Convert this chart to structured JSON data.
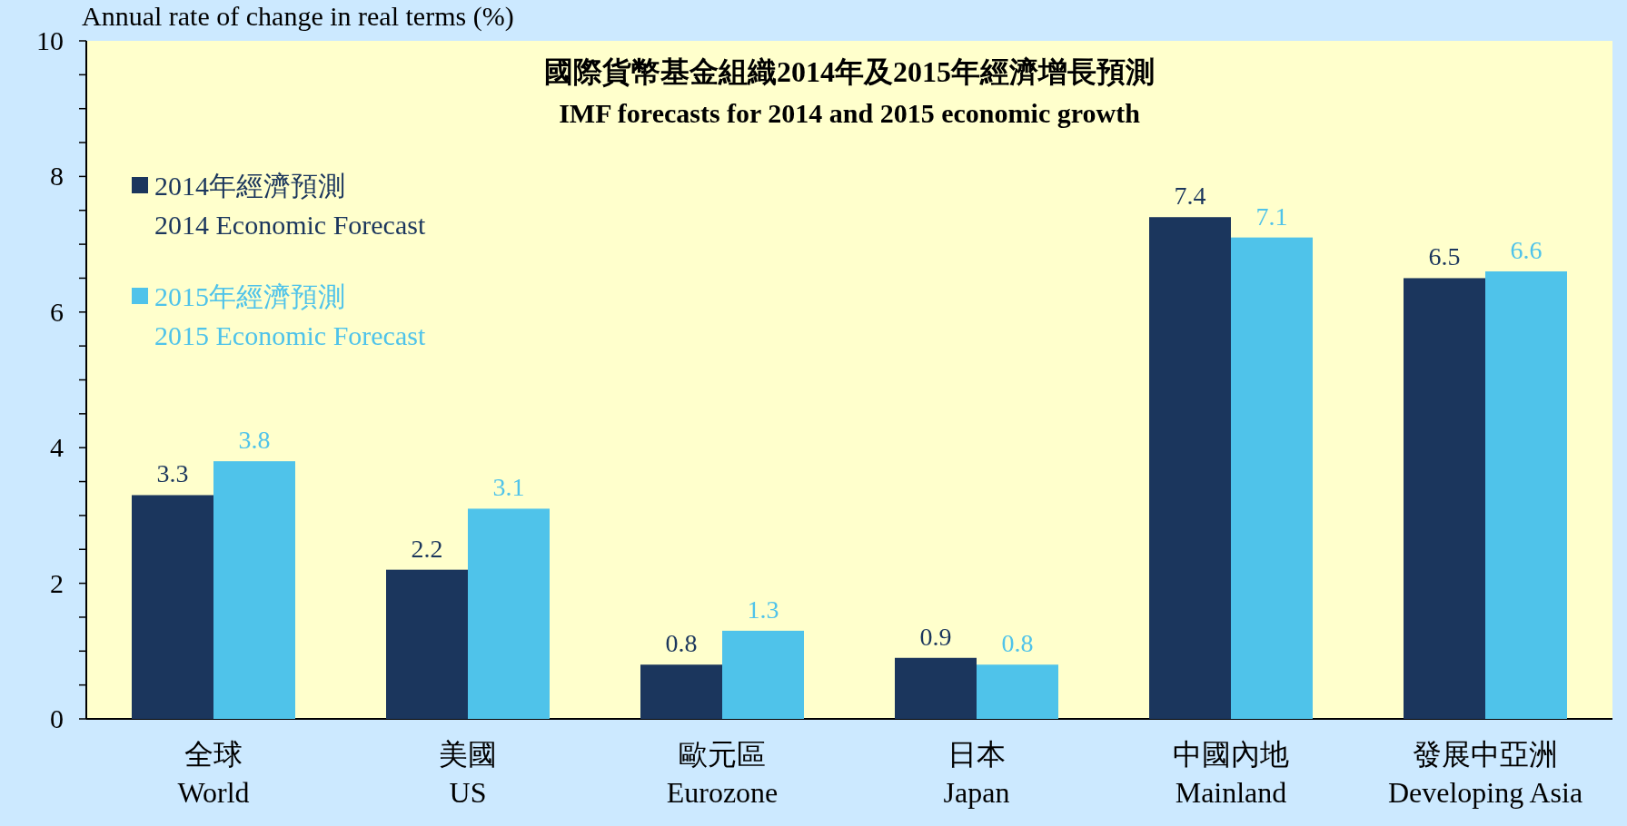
{
  "chart_data": {
    "type": "bar",
    "title": "國際貨幣基金組織2014年及2015年經濟增長預測",
    "subtitle": "IMF forecasts for 2014 and 2015 economic growth",
    "ylabel": "Annual rate of change in real terms (%)",
    "categories": [
      "全球\nWorld",
      "美國\nUS",
      "歐元區\nEurozone",
      "日本\nJapan",
      "中國內地\nMainland",
      "發展中亞洲\nDeveloping Asia"
    ],
    "series": [
      {
        "name": "2014年經濟預測\n2014 Economic Forecast",
        "color": "#1b365d",
        "values": [
          3.3,
          2.2,
          0.8,
          0.9,
          7.4,
          6.5
        ]
      },
      {
        "name": "2015年經濟預測\n2015 Economic Forecast",
        "color": "#4fc3ea",
        "values": [
          3.8,
          3.1,
          1.3,
          0.8,
          7.1,
          6.6
        ]
      }
    ],
    "ylim": [
      0,
      10
    ],
    "yticks": [
      0,
      {
        "value": 0.5,
        "label": null
      },
      {
        "value": 1,
        "label": null
      },
      {
        "value": 1.5,
        "label": null
      },
      2,
      {
        "value": 2.5,
        "label": null
      },
      {
        "value": 3,
        "label": null
      },
      {
        "value": 3.5,
        "label": null
      },
      4,
      {
        "value": 4.5,
        "label": null
      },
      {
        "value": 5,
        "label": null
      },
      {
        "value": 5.5,
        "label": null
      },
      6,
      {
        "value": 6.5,
        "label": null
      },
      {
        "value": 7,
        "label": null
      },
      {
        "value": 7.5,
        "label": null
      },
      8,
      {
        "value": 8.5,
        "label": null
      },
      {
        "value": 9,
        "label": null
      },
      {
        "value": 9.5,
        "label": null
      },
      10
    ],
    "data_labels": true,
    "legend": "top left",
    "grid": false
  }
}
